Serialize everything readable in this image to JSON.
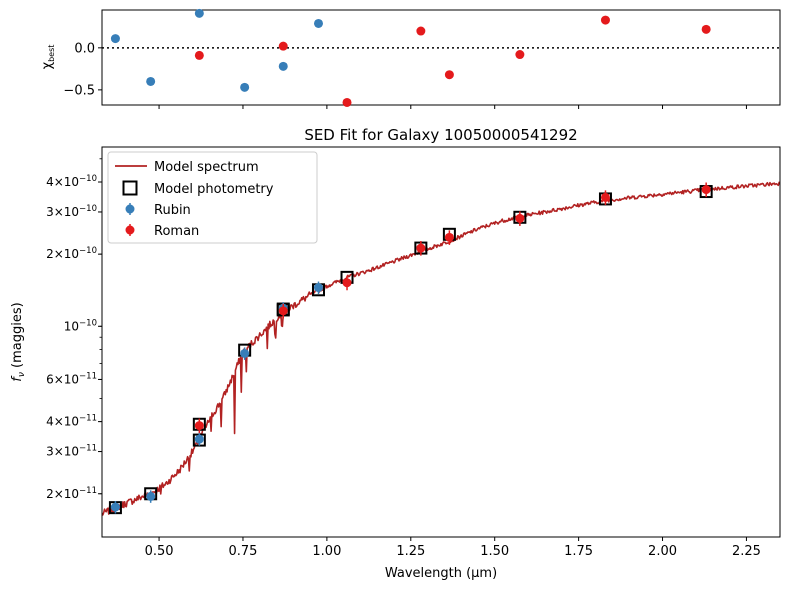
{
  "chart_data": [
    {
      "panel": "residuals",
      "type": "scatter",
      "ylabel_main": "χ",
      "ylabel_sub": "best",
      "xlim": [
        0.33,
        2.35
      ],
      "ylim": [
        -0.68,
        0.45
      ],
      "yticks": [
        {
          "v": 0.0,
          "label": "0.0"
        },
        {
          "v": -0.5,
          "label": "−0.5"
        }
      ],
      "xticks": [
        0.5,
        0.75,
        1.0,
        1.25,
        1.5,
        1.75,
        2.0,
        2.25
      ],
      "zero_line": 0.0,
      "series": [
        {
          "name": "Rubin",
          "color": "#377eb8",
          "points": [
            [
              0.37,
              0.11
            ],
            [
              0.475,
              -0.4
            ],
            [
              0.62,
              0.41
            ],
            [
              0.755,
              -0.47
            ],
            [
              0.87,
              -0.22
            ],
            [
              0.975,
              0.29
            ]
          ]
        },
        {
          "name": "Roman",
          "color": "#e41a1c",
          "points": [
            [
              0.62,
              -0.09
            ],
            [
              0.87,
              0.02
            ],
            [
              1.06,
              -0.65
            ],
            [
              1.28,
              0.2
            ],
            [
              1.365,
              -0.32
            ],
            [
              1.575,
              -0.08
            ],
            [
              1.83,
              0.33
            ],
            [
              2.13,
              0.22
            ]
          ]
        }
      ]
    },
    {
      "panel": "sed",
      "type": "line",
      "title": "SED Fit for Galaxy 10050000541292",
      "xlabel": "Wavelength (μm)",
      "ylabel": "f_ν (maggies)",
      "ylabel_f": "f",
      "ylabel_sub": "ν",
      "ylabel_rest": " (maggies)",
      "xlim": [
        0.33,
        2.35
      ],
      "ylim": [
        1.32e-11,
        5.6e-10
      ],
      "scale": "log",
      "xticks": [
        0.5,
        0.75,
        1.0,
        1.25,
        1.5,
        1.75,
        2.0,
        2.25
      ],
      "xtick_labels": [
        "0.50",
        "0.75",
        "1.00",
        "1.25",
        "1.50",
        "1.75",
        "2.00",
        "2.25"
      ],
      "yticks": [
        {
          "v": 2e-11,
          "mant": "2",
          "exp": "−11"
        },
        {
          "v": 3e-11,
          "mant": "3",
          "exp": "−11"
        },
        {
          "v": 4e-11,
          "mant": "4",
          "exp": "−11"
        },
        {
          "v": 6e-11,
          "mant": "6",
          "exp": "−11"
        },
        {
          "v": 1e-10,
          "mant": "",
          "exp": "−10"
        },
        {
          "v": 2e-10,
          "mant": "2",
          "exp": "−10"
        },
        {
          "v": 3e-10,
          "mant": "3",
          "exp": "−10"
        },
        {
          "v": 4e-10,
          "mant": "4",
          "exp": "−10"
        }
      ],
      "legend": {
        "placement": "top-left",
        "entries": [
          "Model spectrum",
          "Model photometry",
          "Rubin",
          "Roman"
        ]
      },
      "model_spectrum": {
        "name": "Model spectrum",
        "color": "#b22222",
        "points": [
          [
            0.33,
            1.65e-11
          ],
          [
            0.36,
            1.72e-11
          ],
          [
            0.4,
            1.82e-11
          ],
          [
            0.44,
            1.92e-11
          ],
          [
            0.48,
            2.02e-11
          ],
          [
            0.52,
            2.2e-11
          ],
          [
            0.56,
            2.5e-11
          ],
          [
            0.6,
            3e-11
          ],
          [
            0.63,
            3.6e-11
          ],
          [
            0.66,
            4.3e-11
          ],
          [
            0.69,
            5e-11
          ],
          [
            0.72,
            6.2e-11
          ],
          [
            0.75,
            7.8e-11
          ],
          [
            0.78,
            8.6e-11
          ],
          [
            0.82,
            9.8e-11
          ],
          [
            0.86,
            1.12e-10
          ],
          [
            0.9,
            1.22e-10
          ],
          [
            0.95,
            1.35e-10
          ],
          [
            1.0,
            1.47e-10
          ],
          [
            1.06,
            1.6e-10
          ],
          [
            1.12,
            1.7e-10
          ],
          [
            1.18,
            1.82e-10
          ],
          [
            1.25,
            1.98e-10
          ],
          [
            1.3,
            2.1e-10
          ],
          [
            1.37,
            2.28e-10
          ],
          [
            1.45,
            2.55e-10
          ],
          [
            1.52,
            2.75e-10
          ],
          [
            1.58,
            2.88e-10
          ],
          [
            1.65,
            3e-10
          ],
          [
            1.75,
            3.2e-10
          ],
          [
            1.83,
            3.35e-10
          ],
          [
            1.95,
            3.5e-10
          ],
          [
            2.05,
            3.62e-10
          ],
          [
            2.13,
            3.72e-10
          ],
          [
            2.2,
            3.8e-10
          ],
          [
            2.28,
            3.88e-10
          ],
          [
            2.35,
            3.95e-10
          ]
        ]
      },
      "model_photometry": {
        "name": "Model photometry",
        "points": [
          [
            0.37,
            1.75e-11
          ],
          [
            0.475,
            2e-11
          ],
          [
            0.62,
            3.35e-11
          ],
          [
            0.62,
            3.9e-11
          ],
          [
            0.755,
            7.95e-11
          ],
          [
            0.87,
            1.17e-10
          ],
          [
            0.87,
            1.18e-10
          ],
          [
            0.975,
            1.42e-10
          ],
          [
            1.06,
            1.6e-10
          ],
          [
            1.28,
            2.12e-10
          ],
          [
            1.365,
            2.42e-10
          ],
          [
            1.575,
            2.85e-10
          ],
          [
            1.83,
            3.4e-10
          ],
          [
            2.13,
            3.65e-10
          ]
        ]
      },
      "series": [
        {
          "name": "Rubin",
          "color": "#377eb8",
          "points": [
            [
              0.37,
              1.76e-11
            ],
            [
              0.475,
              1.95e-11
            ],
            [
              0.62,
              3.38e-11
            ],
            [
              0.755,
              7.7e-11
            ],
            [
              0.87,
              1.19e-10
            ],
            [
              0.975,
              1.45e-10
            ]
          ],
          "err_frac": 0.06
        },
        {
          "name": "Roman",
          "color": "#e41a1c",
          "points": [
            [
              0.62,
              3.85e-11
            ],
            [
              0.87,
              1.16e-10
            ],
            [
              1.06,
              1.52e-10
            ],
            [
              1.28,
              2.12e-10
            ],
            [
              1.365,
              2.35e-10
            ],
            [
              1.575,
              2.82e-10
            ],
            [
              1.83,
              3.45e-10
            ],
            [
              2.13,
              3.72e-10
            ]
          ],
          "err_frac": 0.07
        }
      ]
    }
  ]
}
